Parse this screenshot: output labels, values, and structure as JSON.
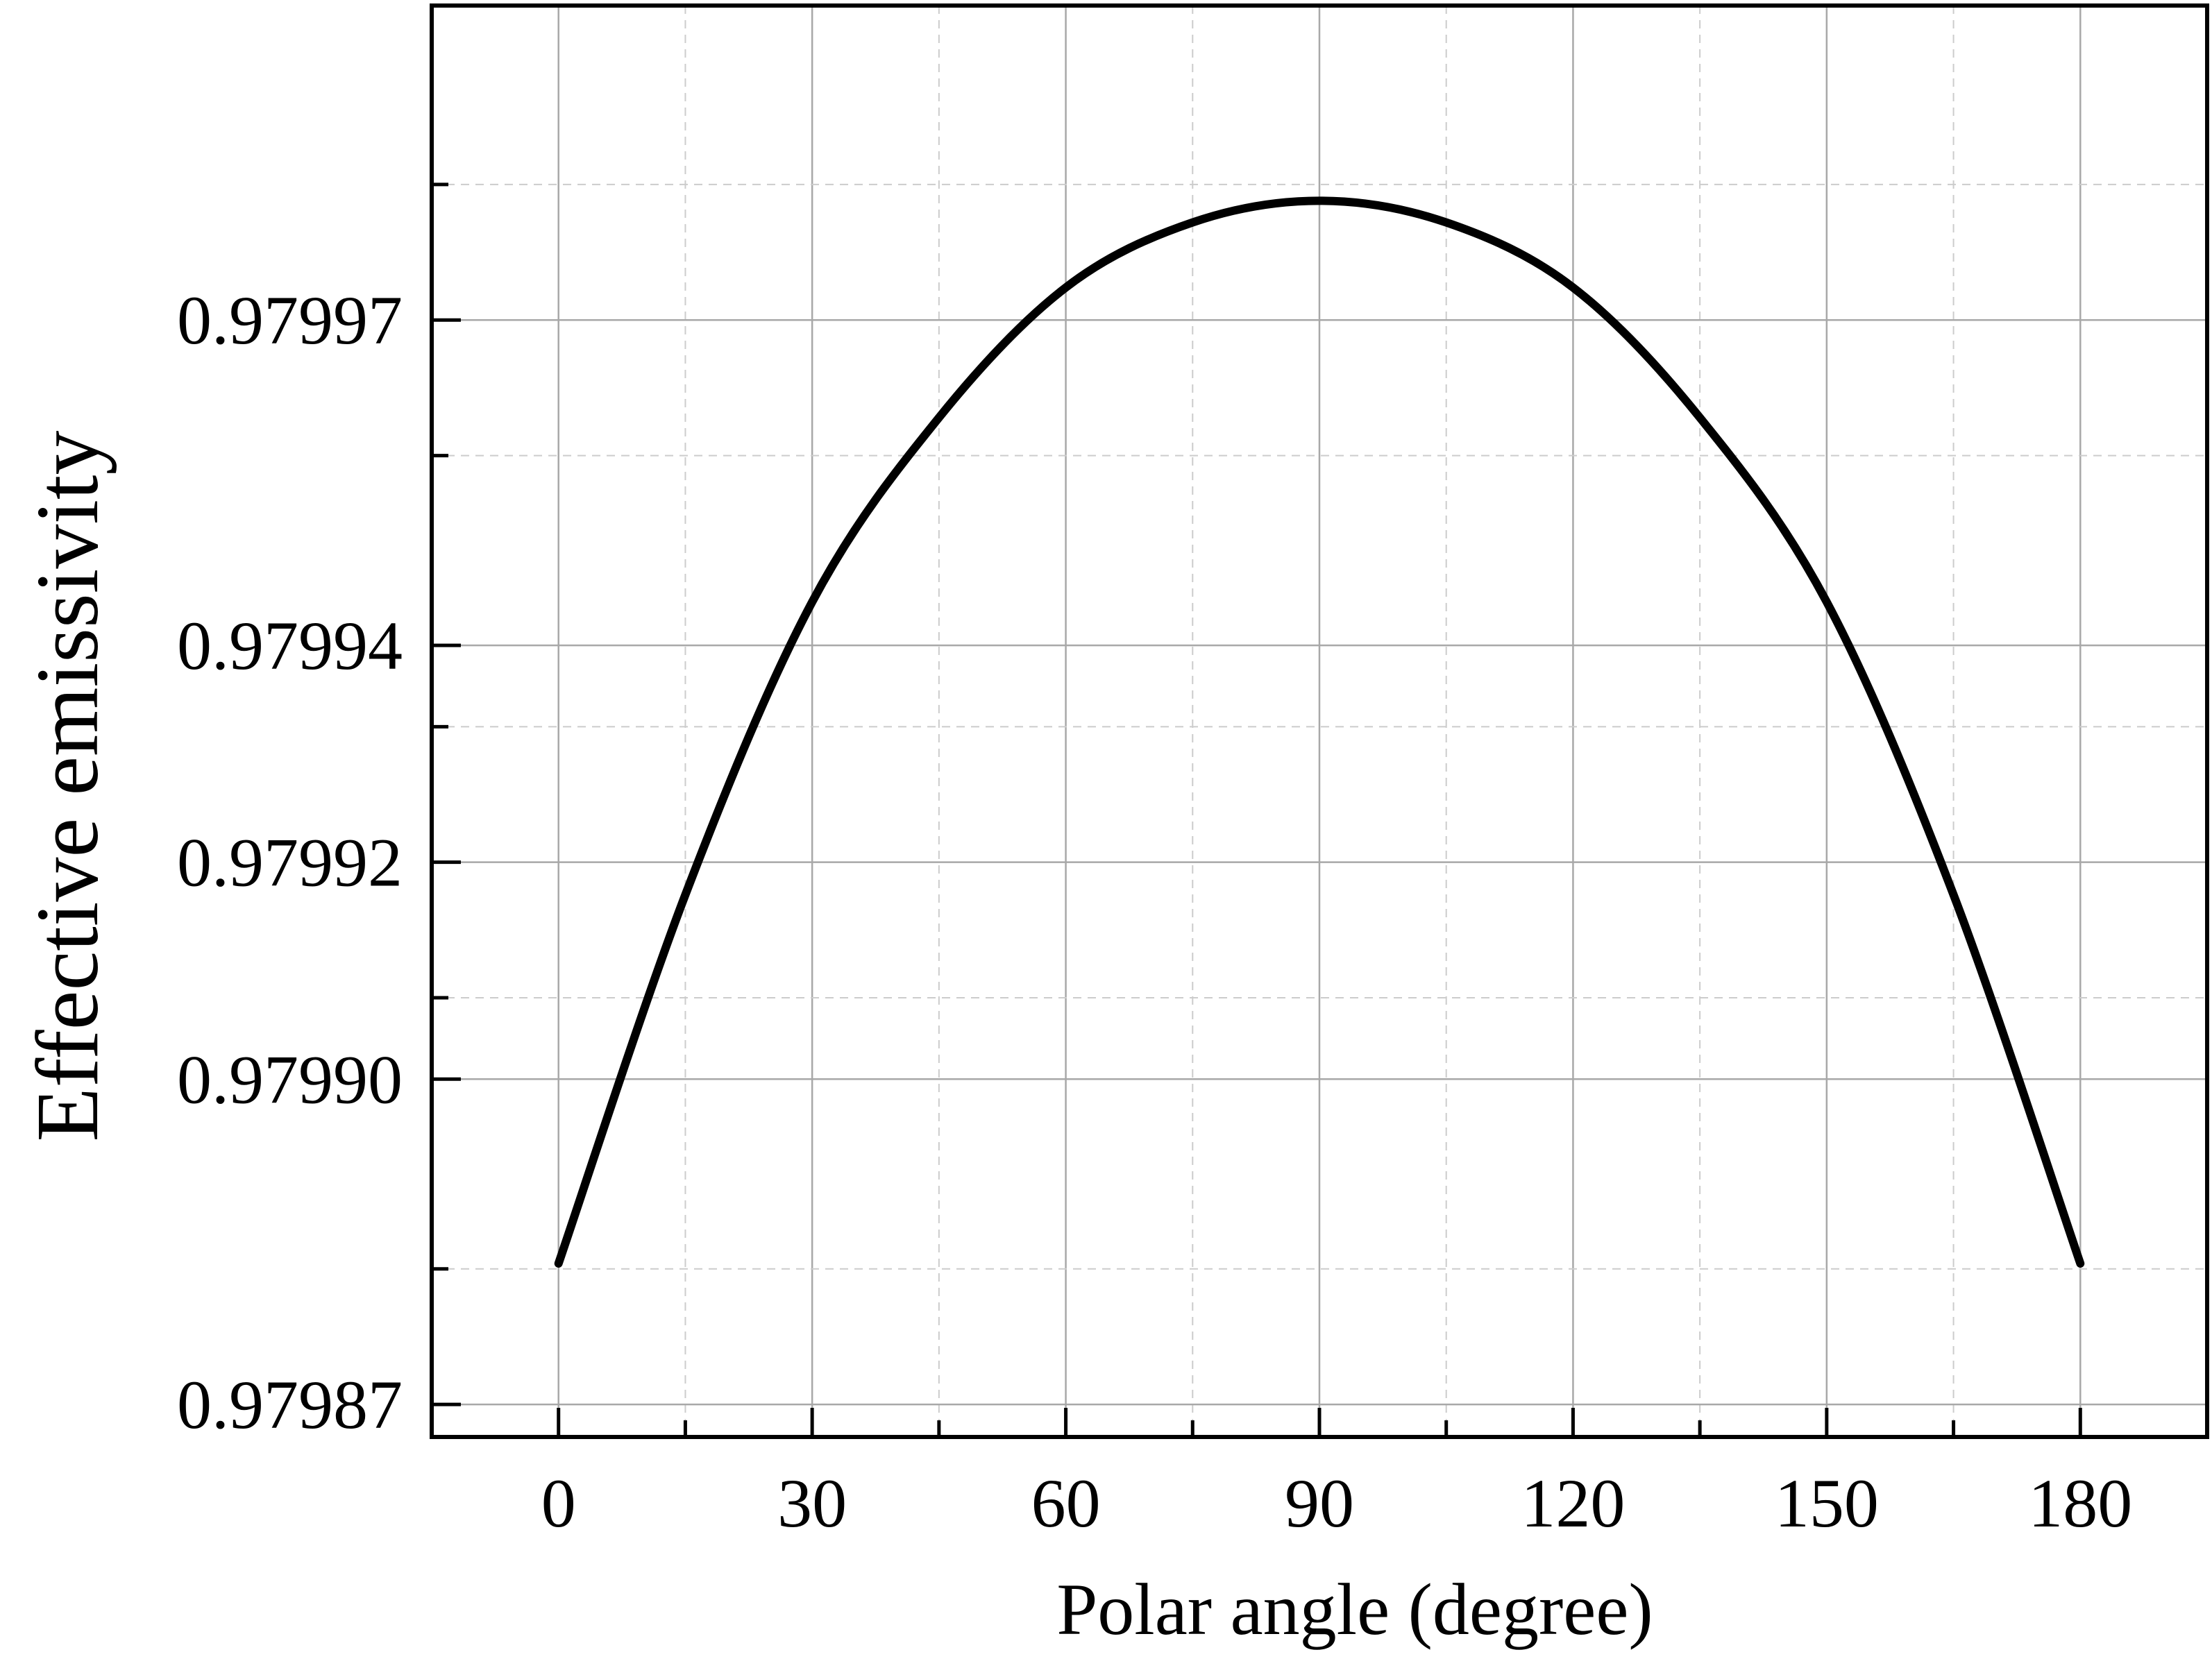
{
  "chart_data": {
    "type": "line",
    "title": "",
    "xlabel": "Polar angle (degree)",
    "ylabel": "Effective emissivity",
    "xlim": [
      -15,
      195
    ],
    "ylim": [
      0.979867,
      0.979999
    ],
    "x_ticks": [
      0,
      30,
      60,
      90,
      120,
      150,
      180
    ],
    "x_tick_labels": [
      "0",
      "30",
      "60",
      "90",
      "120",
      "150",
      "180"
    ],
    "y_ticks": [
      0.97987,
      0.9799,
      0.97992,
      0.97994,
      0.97997
    ],
    "y_tick_labels": [
      "0.97987",
      "0.97990",
      "0.97992",
      "0.97994",
      "0.97997"
    ],
    "grid": true,
    "legend": "none",
    "line_color": "#000000",
    "series": [
      {
        "x": [
          0,
          15,
          30,
          45,
          60,
          75,
          90,
          105,
          120,
          135,
          150,
          165,
          180
        ],
        "y": [
          0.979883,
          0.979917,
          0.979944,
          0.979961,
          0.979973,
          0.979979,
          0.979981,
          0.979979,
          0.979973,
          0.979961,
          0.979944,
          0.979917,
          0.979883
        ]
      }
    ]
  }
}
